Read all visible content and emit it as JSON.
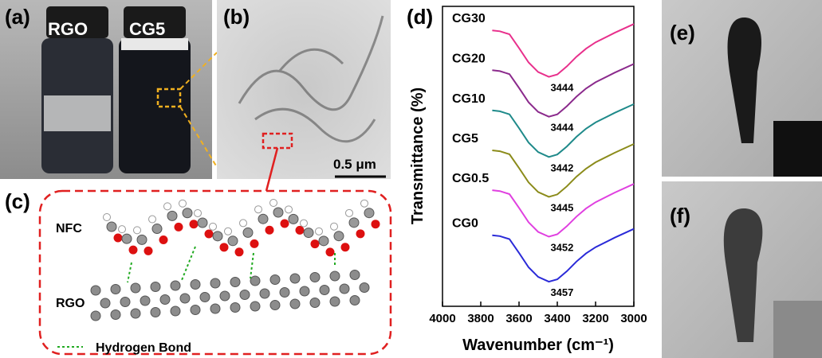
{
  "panels": {
    "a": {
      "label": "(a)",
      "left_vial": "RGO",
      "right_vial": "CG5"
    },
    "b": {
      "label": "(b)",
      "scale_bar": "0.5 μm"
    },
    "c": {
      "label": "(c)",
      "top_layer": "NFC",
      "bottom_layer": "RGO",
      "legend": "Hydrogen Bond"
    },
    "e": {
      "label": "(e)"
    },
    "f": {
      "label": "(f)"
    }
  },
  "chart_data": {
    "type": "line",
    "panel_label": "(d)",
    "x_label": "Wavenumber (cm⁻¹)",
    "y_label": "Transmittance (%)",
    "x": [
      3740,
      3700,
      3650,
      3600,
      3550,
      3500,
      3444,
      3400,
      3350,
      3300,
      3250,
      3200,
      3100,
      3000
    ],
    "xlim": [
      4000,
      3000
    ],
    "xticks": [
      4000,
      3800,
      3600,
      3400,
      3200,
      3000
    ],
    "ylim": [
      0,
      100
    ],
    "series": [
      {
        "name": "CG30",
        "color": "#e8308c",
        "peak": "3444",
        "values": [
          92,
          91.7,
          90.7,
          86.1,
          81.3,
          78.1,
          76.5,
          77.3,
          80,
          83.2,
          85.9,
          88,
          91.2,
          94.1
        ]
      },
      {
        "name": "CG20",
        "color": "#8b2a8c",
        "peak": "3444",
        "values": [
          78.7,
          78.4,
          77.4,
          72.8,
          68,
          64.8,
          63.2,
          64,
          66.7,
          69.9,
          72.6,
          74.7,
          77.9,
          80.8
        ]
      },
      {
        "name": "CG10",
        "color": "#1f8a8a",
        "peak": "3442",
        "values": [
          65.3,
          65,
          64,
          59.4,
          54.6,
          51.4,
          49.8,
          50.6,
          53.3,
          56.5,
          59.2,
          61.3,
          64.5,
          67.4
        ]
      },
      {
        "name": "CG5",
        "color": "#8b8b1a",
        "peak": "3445",
        "values": [
          52,
          51.7,
          50.7,
          46.1,
          41.3,
          38.1,
          36.5,
          37.3,
          40,
          43.2,
          45.9,
          48,
          51.2,
          54.1
        ]
      },
      {
        "name": "CG0.5",
        "color": "#e040e0",
        "peak": "3452",
        "values": [
          38.7,
          38.4,
          37.4,
          32.8,
          28,
          24.8,
          23.2,
          24,
          26.7,
          29.9,
          32.6,
          34.7,
          37.9,
          40.8
        ]
      },
      {
        "name": "CG0",
        "color": "#2a2ad8",
        "peak": "3457",
        "values": [
          23.7,
          23.4,
          22.4,
          17.8,
          13,
          9.8,
          8.2,
          9,
          11.7,
          14.9,
          17.6,
          19.7,
          22.9,
          25.8
        ]
      }
    ]
  }
}
